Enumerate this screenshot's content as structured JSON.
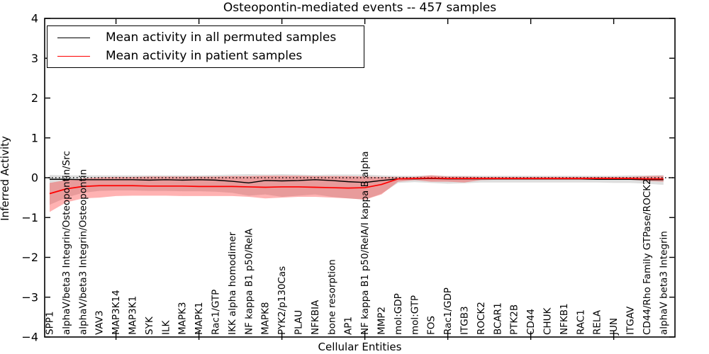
{
  "figure": {
    "title": "Osteopontin-mediated events -- 457 samples"
  },
  "chart_data": {
    "type": "line",
    "title": "Osteopontin-mediated events -- 457 samples",
    "xlabel": "Cellular Entities",
    "ylabel": "Inferred Activity",
    "ylim": [
      -4,
      4
    ],
    "y_ticks": [
      4,
      3,
      2,
      1,
      0,
      -1,
      -2,
      -3,
      -4
    ],
    "x_major_tick_indices": [
      5,
      10,
      15,
      20,
      25,
      30,
      35
    ],
    "grid": false,
    "legend_position": "upper left",
    "zero_line": {
      "value": 0,
      "style": "dotted",
      "color": "#000000"
    },
    "categories": [
      "SPP1",
      "alphaV/beta3 Integrin/Osteopontin/Src",
      "alphaV/beta3 Integrin/Osteopontin",
      "VAV3",
      "MAP3K14",
      "MAP3K1",
      "SYK",
      "ILK",
      "MAPK3",
      "MAPK1",
      "Rac1/GTP",
      "IKK alpha homodimer",
      "NF kappa B1 p50/RelA",
      "MAPK8",
      "PYK2/p130Cas",
      "PLAU",
      "NFKBIA",
      "bone resorption",
      "AP1",
      "NF kappa B1 p50/RelA/I kappa B alpha",
      "MMP2",
      "mol:GDP",
      "mol:GTP",
      "FOS",
      "Rac1/GDP",
      "ITGB3",
      "ROCK2",
      "BCAR1",
      "PTK2B",
      "CD44",
      "CHUK",
      "NFKB1",
      "RAC1",
      "RELA",
      "JUN",
      "ITGAV",
      "CD44/Rho Family GTPase/ROCK2",
      "alphaV beta3 Integrin"
    ],
    "series": [
      {
        "name": "Mean activity in all permuted samples",
        "color": "#000000",
        "band_color": "#000000",
        "band_alpha": 0.13,
        "values": [
          -0.04,
          -0.04,
          -0.05,
          -0.05,
          -0.05,
          -0.05,
          -0.06,
          -0.05,
          -0.06,
          -0.05,
          -0.06,
          -0.09,
          -0.13,
          -0.07,
          -0.08,
          -0.07,
          -0.05,
          -0.07,
          -0.1,
          -0.12,
          -0.07,
          -0.03,
          -0.03,
          -0.02,
          -0.03,
          -0.03,
          -0.03,
          -0.03,
          -0.03,
          -0.03,
          -0.03,
          -0.03,
          -0.03,
          -0.04,
          -0.04,
          -0.04,
          -0.05,
          -0.05
        ],
        "band_high": [
          0.07,
          0.06,
          0.06,
          0.06,
          0.06,
          0.06,
          0.06,
          0.06,
          0.06,
          0.06,
          0.07,
          0.08,
          0.09,
          0.08,
          0.09,
          0.08,
          0.07,
          0.08,
          0.08,
          0.08,
          0.06,
          0.05,
          0.05,
          0.06,
          0.05,
          0.05,
          0.05,
          0.05,
          0.05,
          0.05,
          0.05,
          0.05,
          0.05,
          0.05,
          0.05,
          0.06,
          0.06,
          0.07
        ],
        "band_low": [
          -0.68,
          -0.5,
          -0.38,
          -0.33,
          -0.32,
          -0.32,
          -0.33,
          -0.33,
          -0.34,
          -0.34,
          -0.35,
          -0.38,
          -0.45,
          -0.42,
          -0.48,
          -0.45,
          -0.42,
          -0.48,
          -0.52,
          -0.55,
          -0.4,
          -0.13,
          -0.11,
          -0.13,
          -0.15,
          -0.14,
          -0.12,
          -0.12,
          -0.12,
          -0.12,
          -0.12,
          -0.12,
          -0.12,
          -0.12,
          -0.13,
          -0.13,
          -0.15,
          -0.18
        ]
      },
      {
        "name": "Mean activity in patient samples",
        "color": "#ff0000",
        "band_color": "#ff0000",
        "band_alpha": 0.3,
        "values": [
          -0.4,
          -0.28,
          -0.22,
          -0.2,
          -0.2,
          -0.2,
          -0.21,
          -0.21,
          -0.21,
          -0.22,
          -0.22,
          -0.22,
          -0.23,
          -0.24,
          -0.23,
          -0.23,
          -0.24,
          -0.25,
          -0.26,
          -0.25,
          -0.17,
          -0.03,
          -0.02,
          -0.01,
          -0.02,
          -0.02,
          -0.02,
          -0.02,
          -0.02,
          -0.02,
          -0.02,
          -0.02,
          -0.02,
          -0.02,
          -0.02,
          -0.02,
          -0.03,
          -0.03
        ],
        "band_high": [
          -0.13,
          -0.06,
          -0.02,
          0.01,
          0.02,
          0.02,
          0.03,
          0.03,
          0.03,
          0.03,
          0.03,
          0.04,
          0.04,
          0.05,
          0.05,
          0.05,
          0.04,
          0.04,
          0.04,
          0.03,
          0.02,
          0.02,
          0.02,
          0.06,
          0.03,
          0.03,
          0.02,
          0.02,
          0.02,
          0.02,
          0.02,
          0.02,
          0.02,
          0.02,
          0.02,
          0.02,
          0.04,
          0.05
        ],
        "band_low": [
          -0.86,
          -0.62,
          -0.52,
          -0.5,
          -0.46,
          -0.45,
          -0.45,
          -0.45,
          -0.46,
          -0.46,
          -0.46,
          -0.46,
          -0.48,
          -0.52,
          -0.5,
          -0.48,
          -0.48,
          -0.5,
          -0.52,
          -0.55,
          -0.42,
          -0.1,
          -0.06,
          -0.1,
          -0.1,
          -0.12,
          -0.06,
          -0.05,
          -0.05,
          -0.05,
          -0.05,
          -0.05,
          -0.05,
          -0.05,
          -0.05,
          -0.05,
          -0.08,
          -0.1
        ]
      }
    ]
  }
}
